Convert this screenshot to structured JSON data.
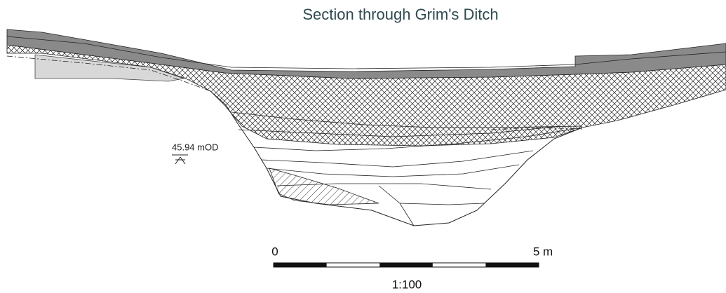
{
  "title": "Section through Grim's Ditch",
  "datum": "45.94 mOD",
  "scale_bar": {
    "start_label": "0",
    "end_label": "5 m",
    "ratio": "1:100"
  }
}
